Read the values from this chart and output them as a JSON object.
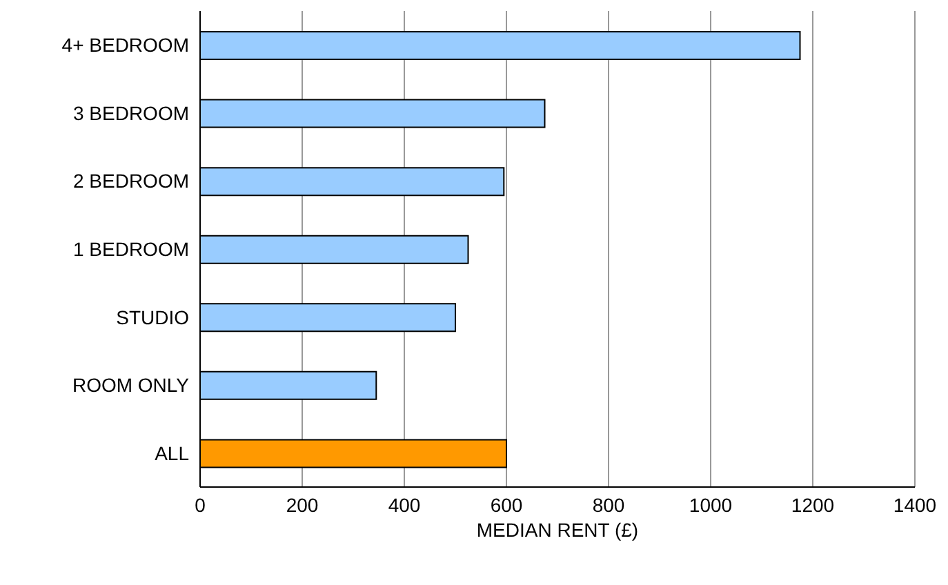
{
  "chart_data": {
    "type": "bar",
    "orientation": "horizontal",
    "xlabel": "MEDIAN RENT (£)",
    "categories": [
      "4+ BEDROOM",
      "3 BEDROOM",
      "2 BEDROOM",
      "1 BEDROOM",
      "STUDIO",
      "ROOM ONLY",
      "ALL"
    ],
    "values": [
      1175,
      675,
      595,
      525,
      500,
      345,
      600
    ],
    "colors": [
      "#99ccff",
      "#99ccff",
      "#99ccff",
      "#99ccff",
      "#99ccff",
      "#99ccff",
      "#ff9900"
    ],
    "xlim": [
      0,
      1400
    ],
    "xticks": [
      0,
      200,
      400,
      600,
      800,
      1000,
      1200,
      1400
    ],
    "grid": "x"
  }
}
